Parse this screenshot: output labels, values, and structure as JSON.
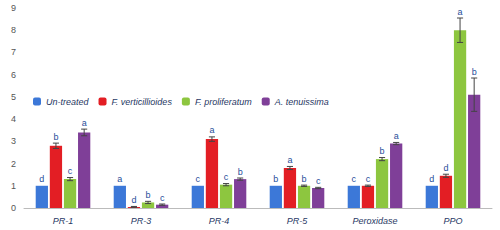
{
  "chart_data": {
    "type": "bar",
    "categories": [
      "PR-1",
      "PR-3",
      "PR-4",
      "PR-5",
      "Peroxidase",
      "PPO"
    ],
    "series": [
      {
        "name": "Un-treated",
        "color": "#3C78D8",
        "values": [
          1,
          1,
          1,
          1,
          1,
          1
        ],
        "errors": [
          0,
          0,
          0,
          0,
          0,
          0
        ],
        "letters": [
          "d",
          "a",
          "c",
          "b",
          "c",
          "d"
        ]
      },
      {
        "name": "F. verticillioides",
        "color": "#E31E24",
        "values": [
          2.8,
          0.05,
          3.1,
          1.8,
          1.0,
          1.45
        ],
        "errors": [
          0.12,
          0.02,
          0.1,
          0.07,
          0.03,
          0.07
        ],
        "letters": [
          "b",
          "d",
          "a",
          "a",
          "c",
          "d"
        ]
      },
      {
        "name": "F. proliferatum",
        "color": "#8DC63F",
        "values": [
          1.3,
          0.25,
          1.05,
          1.0,
          2.2,
          8.0
        ],
        "errors": [
          0.07,
          0.05,
          0.05,
          0.03,
          0.07,
          0.55
        ],
        "letters": [
          "c",
          "b",
          "c",
          "b",
          "b",
          "a"
        ]
      },
      {
        "name": "A. tenuissima",
        "color": "#7F3F98",
        "values": [
          3.4,
          0.15,
          1.3,
          0.9,
          2.9,
          5.1
        ],
        "errors": [
          0.15,
          0.03,
          0.05,
          0.03,
          0.05,
          0.75
        ],
        "letters": [
          "a",
          "c",
          "b",
          "c",
          "a",
          "b"
        ]
      }
    ],
    "ylim": [
      0,
      9
    ],
    "yticks": [
      0,
      1,
      2,
      3,
      4,
      5,
      6,
      7,
      8,
      9
    ],
    "grid": false,
    "legend": "top"
  }
}
